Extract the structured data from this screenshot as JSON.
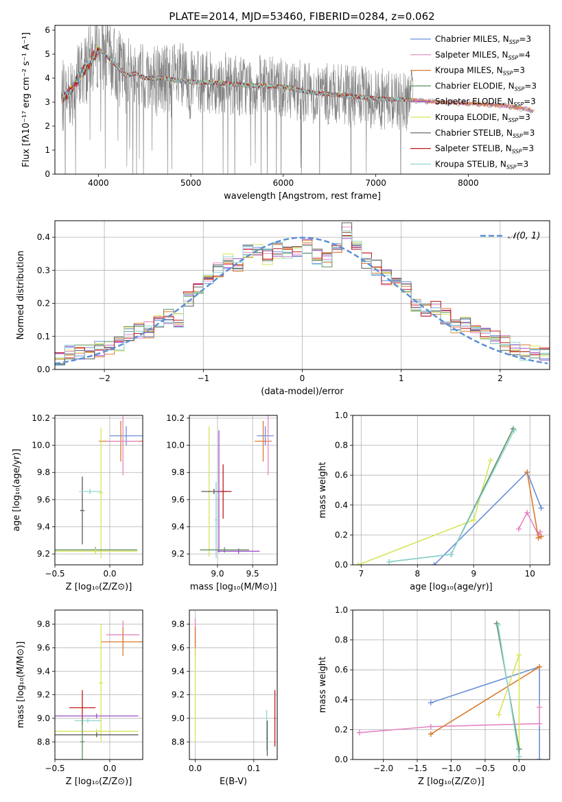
{
  "colors": {
    "chabrier_miles": "#6a8fd8",
    "salpeter_miles": "#e385c0",
    "kroupa_miles": "#d97a2b",
    "chabrier_elodie": "#5f8f5f",
    "salpeter_elodie": "#9a4fc6",
    "kroupa_elodie": "#d8e35a",
    "chabrier_stelib": "#5a5a5a",
    "salpeter_stelib": "#c01818",
    "kroupa_stelib": "#8fd6d6",
    "spectrum": "#808080",
    "normal": "#5b8fd6"
  },
  "chart_data": [
    {
      "id": "spectrum",
      "type": "line",
      "title": "PLATE=2014, MJD=53460, FIBERID=0284, z=0.062",
      "xlabel": "wavelength [Angstrom, rest frame]",
      "ylabel": "Flux [fλ10⁻¹⁷ erg cm⁻² s⁻¹ A⁻¹]",
      "xlim": [
        3530,
        8880
      ],
      "ylim": [
        0,
        6.2
      ],
      "xticks": [
        "4000",
        "5000",
        "6000",
        "7000",
        "8000"
      ],
      "yticks": [
        "0",
        "1",
        "2",
        "3",
        "4",
        "5",
        "6"
      ],
      "continuum": {
        "x": [
          3600,
          3700,
          3800,
          3900,
          3950,
          4000,
          4100,
          4200,
          4300,
          4400,
          4500,
          4700,
          4860,
          5000,
          5300,
          5600,
          6000,
          6300,
          6600,
          7000,
          7300,
          7700,
          8000,
          8400,
          8700
        ],
        "y": [
          3.1,
          3.5,
          4.1,
          4.6,
          4.9,
          5.2,
          4.9,
          4.5,
          4.1,
          4.2,
          4.0,
          4.0,
          3.9,
          3.85,
          3.8,
          3.7,
          3.65,
          3.4,
          3.3,
          3.15,
          3.1,
          3.0,
          2.95,
          2.85,
          2.65
        ]
      },
      "legend": [
        {
          "key": "chabrier_miles",
          "label": "Chabrier MILES, N",
          "sub": "SSP",
          "tail": "=3"
        },
        {
          "key": "salpeter_miles",
          "label": "Salpeter MILES, N",
          "sub": "SSP",
          "tail": "=4"
        },
        {
          "key": "kroupa_miles",
          "label": "Kroupa MILES, N",
          "sub": "SSP",
          "tail": "=3"
        },
        {
          "key": "chabrier_elodie",
          "label": "Chabrier ELODIE, N",
          "sub": "SSP",
          "tail": "=3"
        },
        {
          "key": "salpeter_elodie",
          "label": "Salpeter ELODIE, N",
          "sub": "SSP",
          "tail": "=3"
        },
        {
          "key": "kroupa_elodie",
          "label": "Kroupa ELODIE, N",
          "sub": "SSP",
          "tail": "=3"
        },
        {
          "key": "chabrier_stelib",
          "label": "Chabrier STELIB, N",
          "sub": "SSP",
          "tail": "=3"
        },
        {
          "key": "salpeter_stelib",
          "label": "Salpeter STELIB, N",
          "sub": "SSP",
          "tail": "=3"
        },
        {
          "key": "kroupa_stelib",
          "label": "Kroupa STELIB, N",
          "sub": "SSP",
          "tail": "=3"
        }
      ],
      "legend_loc": "right"
    },
    {
      "id": "residuals",
      "type": "step",
      "xlabel": "(data-model)/error",
      "ylabel": "Normed distribution",
      "xlim": [
        -2.5,
        2.5
      ],
      "ylim": [
        0,
        0.45
      ],
      "xticks": [
        "−2",
        "−1",
        "0",
        "1",
        "2"
      ],
      "yticks": [
        "0.0",
        "0.1",
        "0.2",
        "0.3",
        "0.4"
      ],
      "bins": [
        -2.5,
        -2.4,
        -2.3,
        -2.2,
        -2.1,
        -2.0,
        -1.9,
        -1.8,
        -1.7,
        -1.6,
        -1.5,
        -1.4,
        -1.3,
        -1.2,
        -1.1,
        -1.0,
        -0.9,
        -0.8,
        -0.7,
        -0.6,
        -0.5,
        -0.4,
        -0.3,
        -0.2,
        -0.1,
        0.0,
        0.1,
        0.2,
        0.3,
        0.4,
        0.5,
        0.6,
        0.7,
        0.8,
        0.9,
        1.0,
        1.1,
        1.2,
        1.3,
        1.4,
        1.5,
        1.6,
        1.7,
        1.8,
        1.9,
        2.0,
        2.1,
        2.2,
        2.3,
        2.4,
        2.5
      ],
      "hist": [
        0.03,
        0.05,
        0.05,
        0.05,
        0.06,
        0.06,
        0.08,
        0.11,
        0.12,
        0.12,
        0.14,
        0.16,
        0.15,
        0.21,
        0.25,
        0.28,
        0.3,
        0.33,
        0.32,
        0.36,
        0.37,
        0.34,
        0.36,
        0.35,
        0.36,
        0.37,
        0.34,
        0.33,
        0.36,
        0.42,
        0.37,
        0.33,
        0.31,
        0.28,
        0.26,
        0.25,
        0.2,
        0.18,
        0.19,
        0.16,
        0.13,
        0.14,
        0.12,
        0.1,
        0.1,
        0.08,
        0.06,
        0.05,
        0.05,
        0.04
      ],
      "legend": "𝒩(0, 1)",
      "legend_loc": "top-right",
      "grid": true
    },
    {
      "id": "age_vs_Z",
      "type": "errorbar",
      "xlabel": "Z [log₁₀(Z/Z⊙)]",
      "ylabel": "age  [log₁₀(age/yr)]",
      "xlim": [
        -0.5,
        0.3
      ],
      "ylim": [
        9.12,
        10.22
      ],
      "xticks": [
        "−0.5",
        "0.0"
      ],
      "yticks": [
        "9.2",
        "9.4",
        "9.6",
        "9.8",
        "10.0",
        "10.2"
      ],
      "points": [
        {
          "key": "chabrier_miles",
          "x": 0.15,
          "y": 10.07,
          "xerr": 0.15,
          "yerr": 0.07
        },
        {
          "key": "kroupa_miles",
          "x": 0.1,
          "y": 10.03,
          "xerr": 0.2,
          "yerr": 0.15
        },
        {
          "key": "salpeter_miles",
          "x": 0.12,
          "y": 10.03,
          "xerr": 0.15,
          "yerr": 0.25
        },
        {
          "key": "kroupa_elodie",
          "x": -0.08,
          "y": 9.65,
          "xerr": 0.02,
          "yerr": 0.48
        },
        {
          "key": "chabrier_stelib",
          "x": -0.25,
          "y": 9.52,
          "xerr": 0.02,
          "yerr": 0.25
        },
        {
          "key": "kroupa_stelib",
          "x": -0.18,
          "y": 9.66,
          "xerr": 0.1,
          "yerr": 0.02
        },
        {
          "key": "chabrier_elodie",
          "x": -0.13,
          "y": 9.23,
          "xerr": 0.38,
          "yerr": 0.02
        },
        {
          "key": "kroupa_elodie",
          "x": -0.13,
          "y": 9.22,
          "xerr": 0.38,
          "yerr": 0.02
        }
      ],
      "grid": true
    },
    {
      "id": "age_vs_mass",
      "type": "errorbar",
      "xlabel": "mass [log₁₀(M/M⊙)]",
      "ylabel": "",
      "xlim": [
        8.6,
        9.85
      ],
      "ylim": [
        9.12,
        10.22
      ],
      "xticks": [
        "9.0",
        "9.5"
      ],
      "yticks": [
        "9.2",
        "9.4",
        "9.6",
        "9.8",
        "10.0",
        "10.2"
      ],
      "points": [
        {
          "key": "chabrier_miles",
          "x": 9.68,
          "y": 10.07,
          "xerr": 0.12,
          "yerr": 0.07
        },
        {
          "key": "kroupa_miles",
          "x": 9.65,
          "y": 10.03,
          "xerr": 0.12,
          "yerr": 0.15
        },
        {
          "key": "salpeter_miles",
          "x": 9.72,
          "y": 10.03,
          "xerr": 0.02,
          "yerr": 0.25
        },
        {
          "key": "kroupa_elodie",
          "x": 8.88,
          "y": 9.66,
          "xerr": 0.02,
          "yerr": 0.48
        },
        {
          "key": "chabrier_stelib",
          "x": 8.95,
          "y": 9.66,
          "xerr": 0.18,
          "yerr": 0.02
        },
        {
          "key": "salpeter_stelib",
          "x": 9.08,
          "y": 9.66,
          "xerr": 0.12,
          "yerr": 0.2
        },
        {
          "key": "salpeter_elodie",
          "x": 9.02,
          "y": 9.66,
          "xerr": 0.02,
          "yerr": 0.45
        },
        {
          "key": "kroupa_stelib",
          "x": 8.98,
          "y": 9.45,
          "xerr": 0.02,
          "yerr": 0.28
        },
        {
          "key": "chabrier_elodie",
          "x": 9.1,
          "y": 9.23,
          "xerr": 0.35,
          "yerr": 0.02
        },
        {
          "key": "salpeter_elodie",
          "x": 9.3,
          "y": 9.22,
          "xerr": 0.3,
          "yerr": 0.02
        }
      ],
      "grid": true
    },
    {
      "id": "weight_vs_age",
      "type": "line",
      "xlabel": "age  [log₁₀(age/yr)]",
      "ylabel": "mass weight",
      "xlim": [
        6.85,
        10.35
      ],
      "ylim": [
        0,
        1
      ],
      "xticks": [
        "7",
        "8",
        "9",
        "10"
      ],
      "yticks": [
        "0.0",
        "0.2",
        "0.4",
        "0.6",
        "0.8",
        "1.0"
      ],
      "series": [
        {
          "key": "chabrier_miles",
          "x": [
            8.3,
            9.95,
            10.2
          ],
          "y": [
            0.0,
            0.62,
            0.38
          ]
        },
        {
          "key": "salpeter_miles",
          "x": [
            9.8,
            9.95,
            10.15,
            10.18
          ],
          "y": [
            0.24,
            0.35,
            0.2,
            0.22
          ]
        },
        {
          "key": "kroupa_miles",
          "x": [
            9.95,
            10.15,
            10.2
          ],
          "y": [
            0.62,
            0.18,
            0.19
          ]
        },
        {
          "key": "kroupa_elodie",
          "x": [
            6.95,
            9.0,
            9.3,
            9.0
          ],
          "y": [
            0.0,
            0.3,
            0.7,
            0.3
          ]
        },
        {
          "key": "chabrier_elodie",
          "x": [
            7.5,
            8.6,
            9.7,
            8.6
          ],
          "y": [
            0.02,
            0.07,
            0.91,
            0.07
          ]
        },
        {
          "key": "kroupa_stelib",
          "x": [
            7.5,
            8.6,
            9.72
          ],
          "y": [
            0.02,
            0.07,
            0.9
          ]
        }
      ],
      "grid": true
    },
    {
      "id": "mass_vs_Z",
      "type": "errorbar",
      "xlabel": "Z [log₁₀(Z/Z⊙)]",
      "ylabel": "mass [log₁₀(M/M⊙)]",
      "xlim": [
        -0.5,
        0.3
      ],
      "ylim": [
        8.65,
        9.92
      ],
      "xticks": [
        "−0.5",
        "0.0"
      ],
      "yticks": [
        "8.8",
        "9.0",
        "9.2",
        "9.4",
        "9.6",
        "9.8"
      ],
      "points": [
        {
          "key": "salpeter_miles",
          "x": 0.12,
          "y": 9.71,
          "xerr": 0.15,
          "yerr": 0.12
        },
        {
          "key": "kroupa_miles",
          "x": 0.12,
          "y": 9.65,
          "xerr": 0.2,
          "yerr": 0.12
        },
        {
          "key": "kroupa_elodie",
          "x": -0.08,
          "y": 9.3,
          "xerr": 0.02,
          "yerr": 0.5
        },
        {
          "key": "salpeter_stelib",
          "x": -0.25,
          "y": 9.09,
          "xerr": 0.12,
          "yerr": 0.15
        },
        {
          "key": "salpeter_elodie",
          "x": -0.12,
          "y": 9.02,
          "xerr": 0.38,
          "yerr": 0.02
        },
        {
          "key": "kroupa_stelib",
          "x": -0.2,
          "y": 8.98,
          "xerr": 0.12,
          "yerr": 0.02
        },
        {
          "key": "kroupa_elodie",
          "x": -0.12,
          "y": 8.89,
          "xerr": 0.38,
          "yerr": 0.02
        },
        {
          "key": "chabrier_stelib",
          "x": -0.12,
          "y": 8.86,
          "xerr": 0.38,
          "yerr": 0.02
        },
        {
          "key": "chabrier_elodie",
          "x": -0.25,
          "y": 8.8,
          "xerr": 0.02,
          "yerr": 0.2
        }
      ],
      "grid": true
    },
    {
      "id": "mass_vs_EBV",
      "type": "errorbar",
      "xlabel": "E(B-V)",
      "ylabel": "",
      "xlim": [
        -0.01,
        0.14
      ],
      "ylim": [
        8.65,
        9.92
      ],
      "xticks": [
        "0.0",
        "0.1"
      ],
      "yticks": [
        "8.8",
        "9.0",
        "9.2",
        "9.4",
        "9.6",
        "9.8"
      ],
      "points": [
        {
          "key": "salpeter_miles",
          "x": 0.0,
          "y": 9.72,
          "xerr": 0.001,
          "yerr": 0.13
        },
        {
          "key": "kroupa_miles",
          "x": 0.0,
          "y": 9.65,
          "xerr": 0.001,
          "yerr": 0.13
        },
        {
          "key": "kroupa_elodie",
          "x": 0.0,
          "y": 9.2,
          "xerr": 0.001,
          "yerr": 0.4
        },
        {
          "key": "kroupa_stelib",
          "x": 0.122,
          "y": 8.9,
          "xerr": 0.001,
          "yerr": 0.17
        },
        {
          "key": "chabrier_stelib",
          "x": 0.123,
          "y": 8.83,
          "xerr": 0.001,
          "yerr": 0.15
        },
        {
          "key": "salpeter_stelib",
          "x": 0.136,
          "y": 9.0,
          "xerr": 0.001,
          "yerr": 0.24
        }
      ],
      "grid": true
    },
    {
      "id": "weight_vs_Z",
      "type": "line",
      "xlabel": "Z [log₁₀(Z/Z⊙)]",
      "ylabel": "mass weight",
      "xlim": [
        -2.45,
        0.45
      ],
      "ylim": [
        0,
        1
      ],
      "xticks": [
        "−2.0",
        "−1.5",
        "−1.0",
        "−0.5",
        "0.0"
      ],
      "yticks": [
        "0.0",
        "0.2",
        "0.4",
        "0.6",
        "0.8",
        "1.0"
      ],
      "series": [
        {
          "key": "chabrier_miles",
          "x": [
            -1.3,
            0.3,
            0.3
          ],
          "y": [
            0.38,
            0.62,
            0.0
          ]
        },
        {
          "key": "salpeter_miles",
          "x": [
            -2.35,
            -1.3,
            0.3,
            0.3
          ],
          "y": [
            0.18,
            0.22,
            0.24,
            0.35
          ]
        },
        {
          "key": "kroupa_miles",
          "x": [
            -1.3,
            0.3
          ],
          "y": [
            0.17,
            0.62
          ]
        },
        {
          "key": "kroupa_elodie",
          "x": [
            -0.3,
            0.0,
            0.0
          ],
          "y": [
            0.3,
            0.7,
            0.0
          ]
        },
        {
          "key": "chabrier_elodie",
          "x": [
            -0.33,
            0.0,
            0.0
          ],
          "y": [
            0.91,
            0.07,
            0.02
          ]
        },
        {
          "key": "kroupa_stelib",
          "x": [
            -0.31,
            0.0
          ],
          "y": [
            0.9,
            0.02
          ]
        }
      ],
      "grid": true
    }
  ]
}
